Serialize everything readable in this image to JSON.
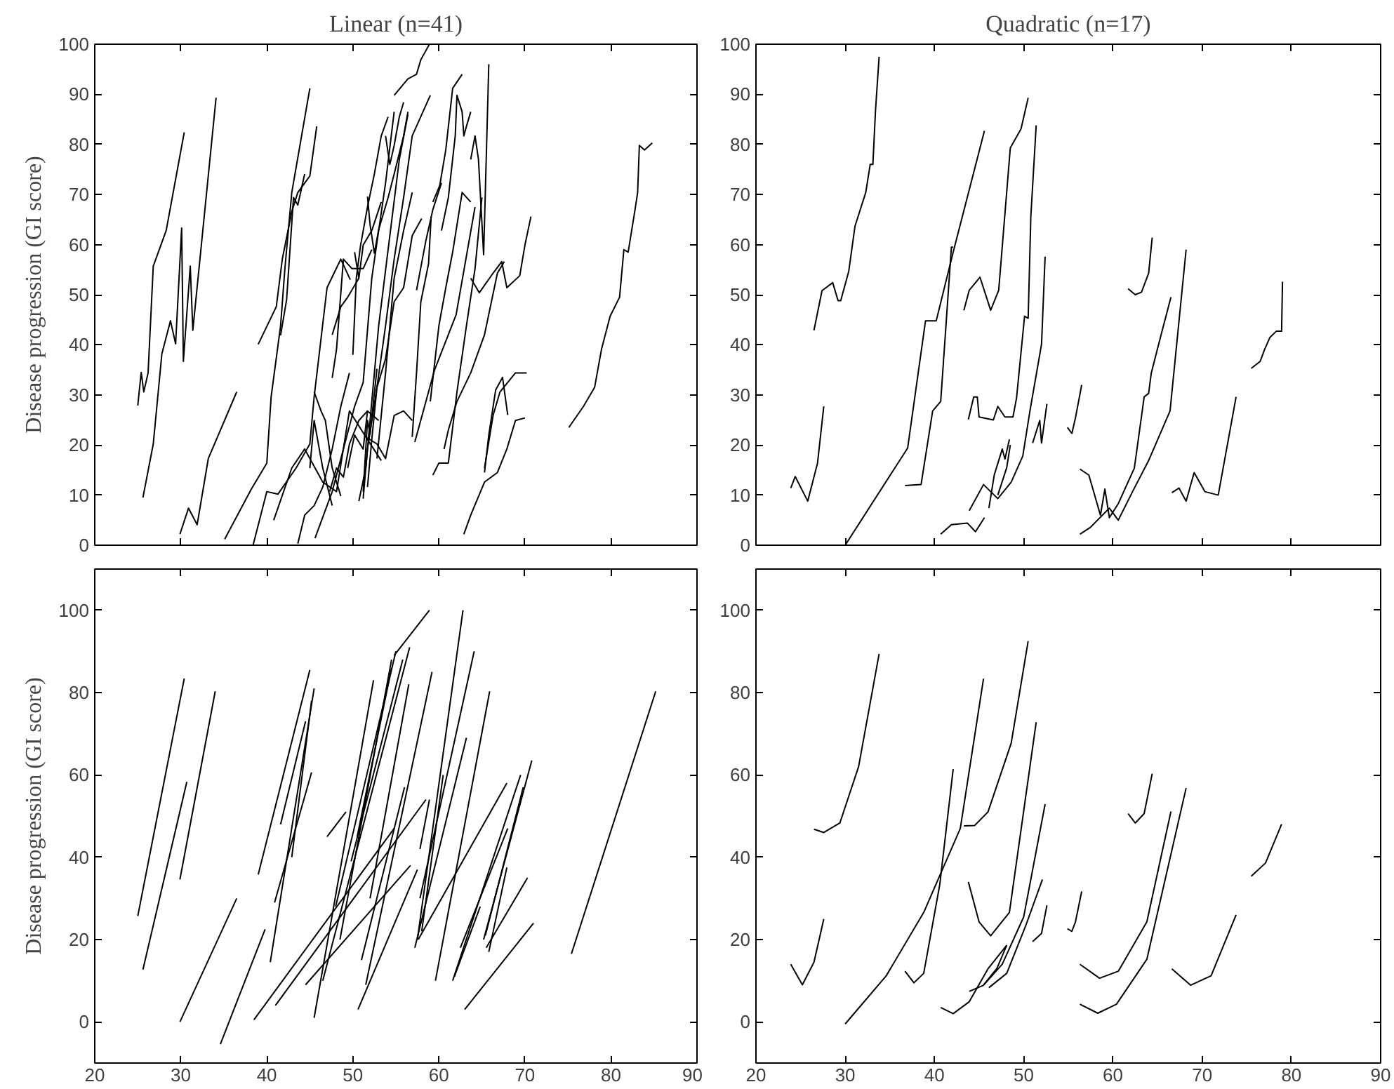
{
  "chart_data": [
    {
      "type": "line",
      "title": "Linear (n=41)",
      "ylabel": "Disease progression (GI score)",
      "xlim": [
        20,
        90
      ],
      "xticks": [
        20,
        30,
        40,
        50,
        60,
        70,
        80,
        90
      ],
      "ylim": [
        0,
        100
      ],
      "yticks": [
        0,
        10,
        20,
        30,
        40,
        50,
        60,
        70,
        80,
        90,
        100
      ],
      "tick_labels": "y",
      "series": [
        {
          "color": "#000000",
          "x": [
            25,
            25.4,
            25.7,
            26.2,
            26.8,
            28.3,
            30.4
          ],
          "values": [
            27.9,
            34.5,
            30.6,
            34.4,
            55.7,
            62.8,
            82.4
          ]
        },
        {
          "color": "#000000",
          "x": [
            25.6,
            26.8,
            27.8,
            28.8,
            29.4,
            30.1,
            30.3,
            31.1,
            31.4,
            34.1
          ],
          "values": [
            9.5,
            20.2,
            38.2,
            44.8,
            40.2,
            63.3,
            36.7,
            55.7,
            42.9,
            89.3
          ]
        },
        {
          "color": "#000000",
          "x": [
            29.9,
            30.9,
            31.9,
            33.2,
            36.5
          ],
          "values": [
            2.2,
            7.4,
            4.1,
            17.3,
            30.6
          ]
        },
        {
          "color": "#000000",
          "x": [
            35.1,
            38.2,
            40,
            40.5,
            41.6,
            42.1,
            42.9,
            45
          ],
          "values": [
            1.2,
            11.2,
            16.4,
            29.6,
            43.8,
            55.2,
            70.4,
            91.2
          ]
        },
        {
          "color": "#000000",
          "x": [
            39,
            41.1,
            41.8,
            42.9,
            43.6,
            45,
            45.8
          ],
          "values": [
            40.1,
            47.6,
            57.1,
            66.6,
            70.4,
            73.7,
            83.6
          ]
        },
        {
          "color": "#000000",
          "x": [
            38.4,
            40,
            41.3,
            43.4,
            45,
            45.5,
            47,
            48.6,
            49.7
          ],
          "values": [
            0,
            10.7,
            10.2,
            15.4,
            20.2,
            29.6,
            51.4,
            57.1,
            53
          ]
        },
        {
          "color": "#000000",
          "x": [
            40.8,
            42.9,
            44.4,
            46.5,
            48.1,
            49.6,
            51.7,
            53.3
          ],
          "values": [
            5,
            15.4,
            19.2,
            12.6,
            10.7,
            26.8,
            21.1,
            16.9
          ]
        },
        {
          "color": "#000000",
          "x": [
            45.6,
            47.6,
            48.9,
            50.2,
            51.2,
            52.2,
            53.8,
            54.8
          ],
          "values": [
            1.4,
            10.7,
            19.2,
            27.7,
            32.5,
            53.3,
            72.3,
            86.5
          ]
        },
        {
          "color": "#000000",
          "x": [
            51.2,
            51.7,
            52.8,
            53.8,
            54.8,
            55.9,
            56.9,
            59
          ],
          "values": [
            9.3,
            19.2,
            31.5,
            43.8,
            57.1,
            69.4,
            81.7,
            89.8
          ]
        },
        {
          "color": "#000000",
          "x": [
            50.7,
            51.5,
            52,
            53,
            54.3,
            55.4,
            56.4
          ],
          "values": [
            8.8,
            15.4,
            24.9,
            43.8,
            61.8,
            77,
            86
          ]
        },
        {
          "color": "#000000",
          "x": [
            54.8,
            56.4,
            57.4,
            57.9,
            58.9
          ],
          "values": [
            89.8,
            93.1,
            94,
            96.9,
            100
          ]
        },
        {
          "color": "#000000",
          "x": [
            57.2,
            59.5,
            62,
            64.2
          ],
          "values": [
            20.6,
            35,
            46,
            67.5
          ]
        },
        {
          "color": "#000000",
          "x": [
            59.3,
            60,
            61.1,
            62.1,
            63.2,
            64.2,
            65
          ],
          "values": [
            14,
            16.4,
            16.4,
            30.6,
            43.8,
            55.2,
            69.4
          ]
        },
        {
          "color": "#000000",
          "x": [
            60.6,
            61.1,
            62.1,
            63.7,
            65.3,
            66.8,
            67.6
          ],
          "values": [
            19.2,
            23,
            28.7,
            34.4,
            42,
            54.3,
            56.6
          ]
        },
        {
          "color": "#000000",
          "x": [
            62.9,
            63.7,
            65.3,
            66.8,
            67.9,
            68.9,
            70
          ],
          "values": [
            2.2,
            6,
            12.6,
            14.5,
            19.2,
            24.9,
            25.4
          ]
        },
        {
          "color": "#000000",
          "x": [
            65.3,
            65.8,
            66.6,
            67.4,
            68
          ],
          "values": [
            14.5,
            22,
            31,
            33.5,
            26
          ]
        },
        {
          "color": "#000000",
          "x": [
            63.7,
            64.7,
            66.3,
            67.3,
            67.9,
            69.4,
            70,
            70.7
          ],
          "values": [
            53.3,
            50.4,
            54.3,
            56.6,
            51.4,
            53.8,
            59.9,
            65.6
          ]
        },
        {
          "color": "#000000",
          "x": [
            59.3,
            60.1,
            60.8,
            61.6,
            62.7
          ],
          "values": [
            68.5,
            71.8,
            78.9,
            91.2,
            94
          ]
        },
        {
          "color": "#000000",
          "x": [
            63.7,
            64.2,
            64.6,
            65.2,
            65.8
          ],
          "values": [
            77,
            81.7,
            77,
            58,
            96
          ]
        },
        {
          "color": "#000000",
          "x": [
            60.3,
            61.1,
            61.9,
            62.1,
            62.7,
            62.9,
            63.2,
            63.7
          ],
          "values": [
            62.8,
            69.4,
            81.7,
            89.8,
            86.5,
            81.7,
            83.6,
            86.5
          ]
        },
        {
          "color": "#000000",
          "x": [
            59,
            60,
            60.8,
            61.6,
            62.7,
            63.7
          ],
          "values": [
            28.7,
            43.8,
            51.4,
            58.5,
            70.4,
            68.5
          ]
        },
        {
          "color": "#000000",
          "x": [
            56.9,
            57.4,
            57.9,
            58.8,
            59.1
          ],
          "values": [
            21.6,
            34.4,
            48.6,
            56.2,
            65.6
          ]
        },
        {
          "color": "#000000",
          "x": [
            57.4,
            58.5,
            59.3,
            60.3
          ],
          "values": [
            50.9,
            60.9,
            67,
            72.3
          ]
        },
        {
          "color": "#000000",
          "x": [
            47.6,
            48.1,
            48.9,
            49.9,
            51.2,
            52.2
          ],
          "values": [
            33.4,
            39.1,
            57.1,
            55.2,
            55.2,
            59
          ]
        },
        {
          "color": "#000000",
          "x": [
            51.5,
            52.8,
            53.8,
            54.8,
            55.9,
            56.9
          ],
          "values": [
            21.6,
            20.2,
            17.3,
            25.9,
            26.8,
            24.9
          ]
        },
        {
          "color": "#000000",
          "x": [
            45.5,
            46.3,
            46.8,
            47.6,
            48.6
          ],
          "values": [
            30.6,
            26.8,
            24.9,
            15.4,
            9.8
          ]
        },
        {
          "color": "#000000",
          "x": [
            51.7,
            52,
            52.5,
            53,
            54.1,
            54.8,
            55.9,
            56.4
          ],
          "values": [
            69.6,
            64,
            58.3,
            63,
            69.4,
            74.1,
            81.7,
            86.5
          ]
        },
        {
          "color": "#000000",
          "x": [
            50.2,
            50.7,
            51.2,
            52.2,
            53.3
          ],
          "values": [
            58.5,
            53.3,
            59.9,
            62.8,
            68.5
          ]
        },
        {
          "color": "#000000",
          "x": [
            41.6,
            42.3,
            43.1,
            43.6,
            44.4
          ],
          "values": [
            41.9,
            49,
            69.4,
            67.9,
            74.1
          ]
        },
        {
          "color": "#000000",
          "x": [
            51.2,
            51.7,
            52,
            52.8
          ],
          "values": [
            10.7,
            24.9,
            22.2,
            35.2
          ]
        },
        {
          "color": "#000000",
          "x": [
            65.3,
            66.3,
            67.1,
            68.9,
            70.2
          ],
          "values": [
            15.4,
            25.9,
            30.6,
            34.4,
            34.4
          ]
        },
        {
          "color": "#000000",
          "x": [
            75.1,
            76.8,
            78.1,
            78.9,
            79.9,
            81,
            81.5,
            82,
            82.8,
            83.1,
            83.3,
            83.9,
            84.8
          ],
          "values": [
            23.5,
            27.7,
            31.5,
            39.1,
            45.7,
            49.5,
            59,
            58.5,
            67,
            70.4,
            79.8,
            78.9,
            80.3
          ]
        },
        {
          "color": "#000000",
          "x": [
            45,
            45.5,
            46.5,
            47.6
          ],
          "values": [
            15.4,
            24.9,
            15.4,
            7.9
          ]
        },
        {
          "color": "#000000",
          "x": [
            49.4,
            50.2,
            51.2,
            51.7,
            53
          ],
          "values": [
            15.4,
            22,
            19.2,
            26.8,
            24.9
          ]
        },
        {
          "color": "#000000",
          "x": [
            47.6,
            48.6,
            49.4,
            50.7
          ],
          "values": [
            42,
            47.6,
            49.5,
            53.3
          ]
        },
        {
          "color": "#000000",
          "x": [
            51.7,
            52.2,
            52.8,
            53.8,
            54.8,
            55.9,
            56.9,
            58
          ],
          "values": [
            11.6,
            21.1,
            31.5,
            37.2,
            48.6,
            51.4,
            61.8,
            65.2
          ]
        },
        {
          "color": "#000000",
          "x": [
            53.8,
            54.3,
            54.8,
            55.4,
            55.9
          ],
          "values": [
            81.7,
            76,
            79.8,
            85.5,
            88.4
          ]
        },
        {
          "color": "#000000",
          "x": [
            50,
            50.4,
            50.9,
            51.7,
            52.5,
            53.3,
            54.1
          ],
          "values": [
            38,
            53.3,
            59.9,
            67.5,
            74.1,
            81.7,
            85.5
          ]
        },
        {
          "color": "#000000",
          "x": [
            52.8,
            53.3,
            53.8,
            54.3,
            54.8,
            55.9,
            56.9
          ],
          "values": [
            17.3,
            25.9,
            34.4,
            43.8,
            53.3,
            62.8,
            70.4
          ]
        },
        {
          "color": "#000000",
          "x": [
            43.6,
            44.4,
            45.5,
            46.5,
            47.6,
            48.6,
            49.6
          ],
          "values": [
            0.3,
            6,
            7.9,
            11.6,
            19.2,
            27.7,
            34.4
          ]
        },
        {
          "color": "#000000",
          "x": [
            47.3,
            48.1,
            48.9,
            49.6,
            50.7,
            51.7
          ],
          "values": [
            10.7,
            15.4,
            13.6,
            20.2,
            24.9,
            26.8
          ]
        }
      ]
    },
    {
      "type": "line",
      "title": "Quadratic (n=17)",
      "xlim": [
        20,
        90
      ],
      "xticks": [
        20,
        30,
        40,
        50,
        60,
        70,
        80,
        90
      ],
      "ylim": [
        0,
        100
      ],
      "yticks": [
        0,
        10,
        20,
        30,
        40,
        50,
        60,
        70,
        80,
        90,
        100
      ],
      "tick_labels": "y",
      "series": [
        {
          "color": "#000000",
          "x": [
            23.9,
            24.4,
            25.8,
            26.9,
            27.6
          ],
          "values": [
            11.4,
            13.7,
            8.8,
            16.4,
            27.7
          ]
        },
        {
          "color": "#000000",
          "x": [
            26.5,
            27.4,
            28.6,
            29.2,
            29.5,
            30.4,
            31.1,
            32.3,
            32.8,
            33.1,
            33.4,
            33.8
          ],
          "values": [
            42.9,
            50.8,
            52.4,
            48.8,
            48.8,
            54.7,
            63.7,
            70.4,
            76,
            76,
            86.9,
            97.5
          ]
        },
        {
          "color": "#000000",
          "x": [
            30,
            37,
            39,
            40.2,
            42.1,
            45.6
          ],
          "values": [
            0,
            19.4,
            44.8,
            44.8,
            58.5,
            82.7
          ]
        },
        {
          "color": "#000000",
          "x": [
            36.7,
            38.5,
            39.8,
            40.7,
            41.9,
            42.1
          ],
          "values": [
            11.9,
            12.1,
            26.8,
            28.7,
            59.5,
            59.5
          ]
        },
        {
          "color": "#000000",
          "x": [
            40.7,
            41.9,
            43.7,
            44.6,
            45.6
          ],
          "values": [
            2.2,
            4.1,
            4.4,
            2.7,
            5.5
          ]
        },
        {
          "color": "#000000",
          "x": [
            43.3,
            43.9,
            45.1,
            46.3,
            47.2,
            48.5,
            49.7,
            50.5
          ],
          "values": [
            46.9,
            50.9,
            53.5,
            46.9,
            50.9,
            79.3,
            83.1,
            89.3
          ]
        },
        {
          "color": "#000000",
          "x": [
            43.8,
            44.4,
            44.8,
            45,
            46.6,
            47.1,
            47.9,
            48.8,
            49.2,
            50.1,
            50.5,
            50.8,
            51.4
          ],
          "values": [
            25.1,
            29.6,
            29.6,
            25.6,
            25,
            27.7,
            25.6,
            25.6,
            29.4,
            45.7,
            45.3,
            65.6,
            83.8
          ]
        },
        {
          "color": "#000000",
          "x": [
            43.9,
            45.5,
            47.1,
            48.6,
            49.9,
            50.7,
            52,
            52.4
          ],
          "values": [
            6.9,
            12.1,
            9.3,
            12.6,
            17.8,
            26.8,
            40.1,
            57.6
          ]
        },
        {
          "color": "#000000",
          "x": [
            46.1,
            46.7,
            47.6,
            47.9,
            48.4
          ],
          "values": [
            7.4,
            14,
            19.2,
            17.2,
            21.1
          ]
        },
        {
          "color": "#000000",
          "x": [
            51,
            51.8,
            52,
            52.6
          ],
          "values": [
            20.4,
            24.9,
            20.4,
            28.2
          ]
        },
        {
          "color": "#000000",
          "x": [
            54.9,
            55.4,
            55.8,
            56.5
          ],
          "values": [
            23.5,
            22.3,
            25.4,
            32
          ]
        },
        {
          "color": "#000000",
          "x": [
            56.3,
            57.3,
            58.6,
            59.1,
            59.6,
            60.6,
            62.4,
            63.5,
            64,
            64.3,
            65.4,
            66.5
          ],
          "values": [
            15.2,
            14,
            6,
            11.2,
            5.5,
            8.3,
            15.4,
            29.6,
            30.3,
            34.4,
            42,
            49.5
          ]
        },
        {
          "color": "#000000",
          "x": [
            56.3,
            57.5,
            59.6,
            60.6,
            62.2,
            64,
            66.4,
            68.2
          ],
          "values": [
            2.2,
            3.6,
            7.4,
            5,
            10.7,
            16.9,
            26.8,
            59
          ]
        },
        {
          "color": "#000000",
          "x": [
            61.7,
            62.5,
            63.2,
            64,
            64.4
          ],
          "values": [
            51.2,
            50,
            50.5,
            54.3,
            61.4
          ]
        },
        {
          "color": "#000000",
          "x": [
            66.6,
            67.4,
            68.2,
            69.1,
            70.3,
            71.8,
            73.8
          ],
          "values": [
            10.5,
            11.4,
            8.8,
            14.5,
            10.7,
            10,
            29.6
          ]
        },
        {
          "color": "#000000",
          "x": [
            75.5,
            76.5,
            77,
            77.6,
            78.3,
            78.9,
            79
          ],
          "values": [
            35.3,
            36.7,
            39.1,
            41.5,
            42.7,
            42.7,
            52.6
          ]
        },
        {
          "color": "#000000",
          "x": [
            47.1,
            48.1,
            48.5
          ],
          "values": [
            10,
            15.5,
            20
          ]
        }
      ]
    },
    {
      "type": "line",
      "ylabel": "Disease progression (GI score)",
      "xlim": [
        20,
        90
      ],
      "xticks": [
        20,
        30,
        40,
        50,
        60,
        70,
        80,
        90
      ],
      "ylim": [
        -10,
        110
      ],
      "yticks": [
        0,
        20,
        40,
        60,
        80,
        100
      ],
      "series": [
        {
          "color": "#000000",
          "x": [
            25,
            30.4
          ],
          "values": [
            25.7,
            83.4
          ]
        },
        {
          "color": "#000000",
          "x": [
            25.6,
            30.7
          ],
          "values": [
            12.7,
            58.3
          ]
        },
        {
          "color": "#000000",
          "x": [
            29.9,
            34
          ],
          "values": [
            34.6,
            80.3
          ]
        },
        {
          "color": "#000000",
          "x": [
            29.9,
            36.5
          ],
          "values": [
            0,
            30
          ]
        },
        {
          "color": "#000000",
          "x": [
            34.6,
            39.8
          ],
          "values": [
            -5.4,
            22.5
          ]
        },
        {
          "color": "#000000",
          "x": [
            39,
            45
          ],
          "values": [
            35.8,
            85.5
          ]
        },
        {
          "color": "#000000",
          "x": [
            40.4,
            45.5
          ],
          "values": [
            14.5,
            81
          ]
        },
        {
          "color": "#000000",
          "x": [
            41.6,
            44.5
          ],
          "values": [
            48,
            73
          ]
        },
        {
          "color": "#000000",
          "x": [
            40.9,
            45.2
          ],
          "values": [
            29,
            60.6
          ]
        },
        {
          "color": "#000000",
          "x": [
            38.5,
            54.8
          ],
          "values": [
            0.5,
            47
          ]
        },
        {
          "color": "#000000",
          "x": [
            41,
            58.5
          ],
          "values": [
            4,
            54
          ]
        },
        {
          "color": "#000000",
          "x": [
            44.5,
            56.7
          ],
          "values": [
            9,
            38
          ]
        },
        {
          "color": "#000000",
          "x": [
            45.5,
            52.4
          ],
          "values": [
            1,
            83
          ]
        },
        {
          "color": "#000000",
          "x": [
            47,
            49.2
          ],
          "values": [
            45,
            51
          ]
        },
        {
          "color": "#000000",
          "x": [
            46.5,
            56.6
          ],
          "values": [
            10,
            91
          ]
        },
        {
          "color": "#000000",
          "x": [
            48,
            55
          ],
          "values": [
            28,
            90
          ]
        },
        {
          "color": "#000000",
          "x": [
            48.5,
            54.5
          ],
          "values": [
            20,
            88
          ]
        },
        {
          "color": "#000000",
          "x": [
            49.8,
            55.8
          ],
          "values": [
            39,
            88
          ]
        },
        {
          "color": "#000000",
          "x": [
            50.6,
            57.5
          ],
          "values": [
            3,
            37
          ]
        },
        {
          "color": "#000000",
          "x": [
            51,
            56
          ],
          "values": [
            15,
            57
          ]
        },
        {
          "color": "#000000",
          "x": [
            51.5,
            59.2
          ],
          "values": [
            9,
            85
          ]
        },
        {
          "color": "#000000",
          "x": [
            54.8,
            58.9
          ],
          "values": [
            89,
            100
          ]
        },
        {
          "color": "#000000",
          "x": [
            57.5,
            62.8
          ],
          "values": [
            20,
            100
          ]
        },
        {
          "color": "#000000",
          "x": [
            57.8,
            64.1
          ],
          "values": [
            30,
            90
          ]
        },
        {
          "color": "#000000",
          "x": [
            58,
            60.5
          ],
          "values": [
            22,
            60
          ]
        },
        {
          "color": "#000000",
          "x": [
            57.8,
            58.9
          ],
          "values": [
            42,
            54
          ]
        },
        {
          "color": "#000000",
          "x": [
            57.2,
            63.2
          ],
          "values": [
            18,
            69
          ]
        },
        {
          "color": "#000000",
          "x": [
            59.6,
            65.9
          ],
          "values": [
            10,
            80.3
          ]
        },
        {
          "color": "#000000",
          "x": [
            57.6,
            67.9
          ],
          "values": [
            20,
            58
          ]
        },
        {
          "color": "#000000",
          "x": [
            61.6,
            69.5
          ],
          "values": [
            10,
            60
          ]
        },
        {
          "color": "#000000",
          "x": [
            62.5,
            68
          ],
          "values": [
            18,
            47
          ]
        },
        {
          "color": "#000000",
          "x": [
            61.8,
            64.8
          ],
          "values": [
            11,
            28
          ]
        },
        {
          "color": "#000000",
          "x": [
            63,
            71
          ],
          "values": [
            3,
            24
          ]
        },
        {
          "color": "#000000",
          "x": [
            65.5,
            70.3
          ],
          "values": [
            18,
            35
          ]
        },
        {
          "color": "#000000",
          "x": [
            65.8,
            67.9
          ],
          "values": [
            17,
            37.5
          ]
        },
        {
          "color": "#000000",
          "x": [
            65.2,
            70.8
          ],
          "values": [
            20,
            63.5
          ]
        },
        {
          "color": "#000000",
          "x": [
            65.4,
            69.8
          ],
          "values": [
            21,
            57
          ]
        },
        {
          "color": "#000000",
          "x": [
            75.4,
            85.2
          ],
          "values": [
            16.5,
            80.3
          ]
        },
        {
          "color": "#000000",
          "x": [
            42.9,
            45.2
          ],
          "values": [
            40,
            78
          ]
        },
        {
          "color": "#000000",
          "x": [
            50.5,
            54.5
          ],
          "values": [
            45,
            86
          ]
        },
        {
          "color": "#000000",
          "x": [
            52,
            56.5
          ],
          "values": [
            30,
            82
          ]
        }
      ]
    },
    {
      "type": "line",
      "xlim": [
        20,
        90
      ],
      "xticks": [
        20,
        30,
        40,
        50,
        60,
        70,
        80,
        90
      ],
      "ylim": [
        -10,
        110
      ],
      "yticks": [
        0,
        20,
        40,
        60,
        80,
        100
      ],
      "series": [
        {
          "color": "#000000",
          "x": [
            23.9,
            25.2,
            26.5,
            27.6
          ],
          "values": [
            14,
            9,
            14.5,
            25
          ]
        },
        {
          "color": "#000000",
          "x": [
            26.5,
            27.6,
            29.4,
            31.5,
            33.8
          ],
          "values": [
            46.8,
            46,
            48.3,
            62,
            89.4
          ]
        },
        {
          "color": "#000000",
          "x": [
            30,
            34.6,
            38.8,
            42.9,
            45.5
          ],
          "values": [
            -0.5,
            11.2,
            26.6,
            47,
            83.4
          ]
        },
        {
          "color": "#000000",
          "x": [
            36.7,
            37.7,
            38.8,
            40.6,
            42.1
          ],
          "values": [
            12.3,
            9.5,
            11.8,
            33.4,
            61.4
          ]
        },
        {
          "color": "#000000",
          "x": [
            40.7,
            42.1,
            43.9,
            46,
            48.1
          ],
          "values": [
            3.5,
            2,
            4.9,
            12.9,
            18.6
          ]
        },
        {
          "color": "#000000",
          "x": [
            43.3,
            44.5,
            46,
            48.6,
            50.5
          ],
          "values": [
            47.6,
            47.7,
            51,
            67.7,
            92.5
          ]
        },
        {
          "color": "#000000",
          "x": [
            43.8,
            45,
            46.3,
            48.4,
            51.4
          ],
          "values": [
            34,
            24.3,
            20.9,
            26.6,
            72.8
          ]
        },
        {
          "color": "#000000",
          "x": [
            43.9,
            45.5,
            47.6,
            50,
            52.4
          ],
          "values": [
            7.4,
            8.9,
            14,
            25.5,
            52.9
          ]
        },
        {
          "color": "#000000",
          "x": [
            46.1,
            48.1,
            50.2,
            52.1
          ],
          "values": [
            8.3,
            11.8,
            23.2,
            34.6
          ]
        },
        {
          "color": "#000000",
          "x": [
            51,
            52,
            52.6
          ],
          "values": [
            19.5,
            21.5,
            28.3
          ]
        },
        {
          "color": "#000000",
          "x": [
            54.9,
            55.4,
            55.8,
            56.5
          ],
          "values": [
            22.6,
            22,
            24.3,
            31.7
          ]
        },
        {
          "color": "#000000",
          "x": [
            56.3,
            58.5,
            60.6,
            63.8,
            66.5
          ],
          "values": [
            14,
            10.6,
            12.3,
            24.3,
            51.1
          ]
        },
        {
          "color": "#000000",
          "x": [
            56.3,
            58.3,
            60.4,
            63.8,
            68.2
          ],
          "values": [
            4.3,
            2.1,
            4.3,
            15.2,
            56.8
          ]
        },
        {
          "color": "#000000",
          "x": [
            61.7,
            62.5,
            63.5,
            64.4
          ],
          "values": [
            50.6,
            48.3,
            50.6,
            60.3
          ]
        },
        {
          "color": "#000000",
          "x": [
            66.6,
            68.7,
            71,
            73.8
          ],
          "values": [
            12.9,
            8.9,
            11.2,
            26
          ]
        },
        {
          "color": "#000000",
          "x": [
            75.5,
            77.1,
            78.9
          ],
          "values": [
            35.4,
            38.6,
            48
          ]
        },
        {
          "color": "#000000",
          "x": [
            45.5,
            47,
            48.1
          ],
          "values": [
            9,
            13,
            18.6
          ]
        }
      ]
    }
  ]
}
